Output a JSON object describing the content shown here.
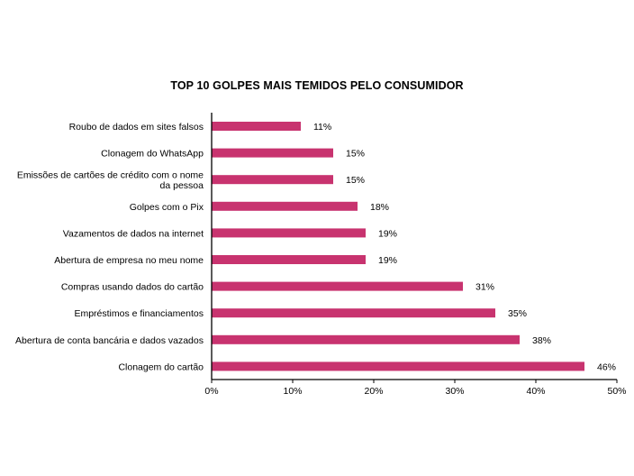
{
  "chart_data": {
    "type": "bar",
    "orientation": "horizontal",
    "title": "TOP 10 GOLPES MAIS TEMIDOS PELO CONSUMIDOR",
    "categories": [
      "Roubo de dados em sites falsos",
      "Clonagem do WhatsApp",
      "Emissões de cartões de crédito com o nome da pessoa",
      "Golpes com o Pix",
      "Vazamentos de dados na internet",
      "Abertura de empresa no meu nome",
      "Compras usando dados do cartão",
      "Empréstimos e financiamentos",
      "Abertura de conta bancária e dados vazados",
      "Clonagem do cartão"
    ],
    "category_label_lines": [
      [
        "Roubo de dados em sites falsos"
      ],
      [
        "Clonagem do WhatsApp"
      ],
      [
        "Emissões de cartões de crédito com o nome",
        "da pessoa"
      ],
      [
        "Golpes com o Pix"
      ],
      [
        "Vazamentos de dados na internet"
      ],
      [
        "Abertura de empresa no meu nome"
      ],
      [
        "Compras usando dados do cartão"
      ],
      [
        "Empréstimos e financiamentos"
      ],
      [
        "Abertura de conta bancária e dados vazados"
      ],
      [
        "Clonagem do cartão"
      ]
    ],
    "values": [
      11,
      15,
      15,
      18,
      19,
      19,
      31,
      35,
      38,
      46
    ],
    "value_labels": [
      "11%",
      "15%",
      "15%",
      "18%",
      "19%",
      "19%",
      "31%",
      "35%",
      "38%",
      "46%"
    ],
    "x_ticks": [
      "0%",
      "10%",
      "20%",
      "30%",
      "40%",
      "50%"
    ],
    "xlim": [
      0,
      50
    ],
    "xlabel": "",
    "ylabel": "",
    "grid": false,
    "legend": "none",
    "bar_color": "#c8336f"
  }
}
